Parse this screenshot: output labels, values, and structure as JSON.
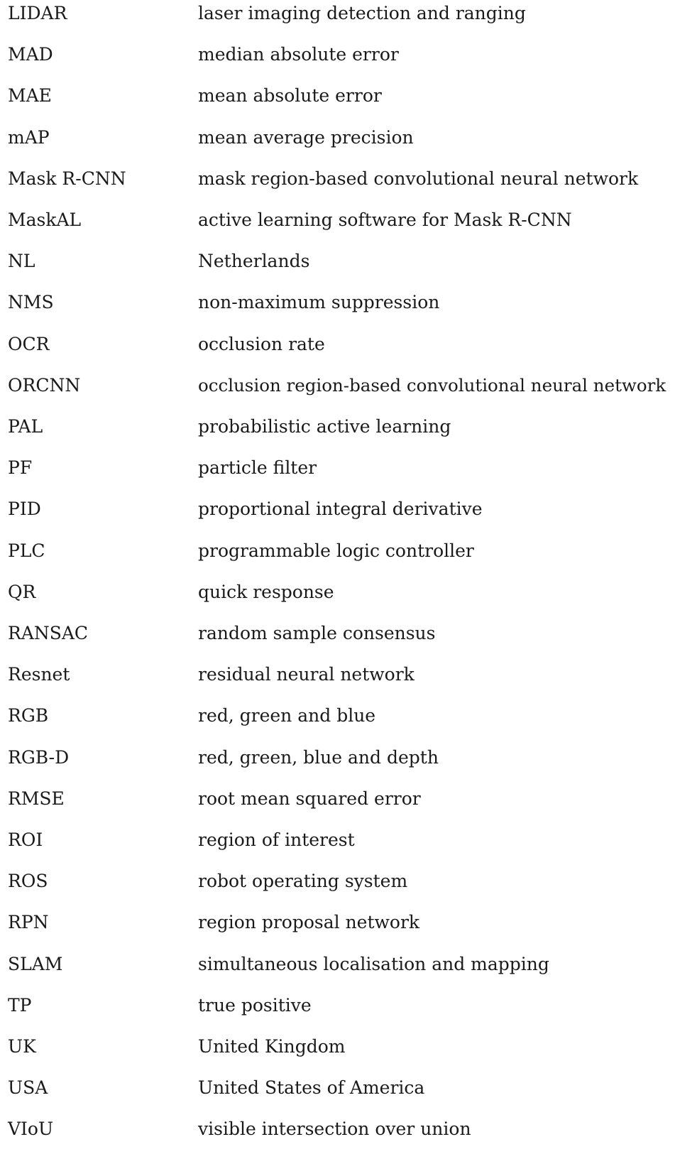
{
  "abbreviations": [
    {
      "abbr": "LIDAR",
      "definition": "laser imaging detection and ranging"
    },
    {
      "abbr": "MAD",
      "definition": "median absolute error"
    },
    {
      "abbr": "MAE",
      "definition": "mean absolute error"
    },
    {
      "abbr": "mAP",
      "definition": "mean average precision"
    },
    {
      "abbr": "Mask R-CNN",
      "definition": "mask region-based convolutional neural network"
    },
    {
      "abbr": "MaskAL",
      "definition": "active learning software for Mask R-CNN"
    },
    {
      "abbr": "NL",
      "definition": "Netherlands"
    },
    {
      "abbr": "NMS",
      "definition": "non-maximum suppression"
    },
    {
      "abbr": "OCR",
      "definition": "occlusion rate"
    },
    {
      "abbr": "ORCNN",
      "definition": "occlusion region-based convolutional neural network"
    },
    {
      "abbr": "PAL",
      "definition": "probabilistic active learning"
    },
    {
      "abbr": "PF",
      "definition": "particle filter"
    },
    {
      "abbr": "PID",
      "definition": "proportional integral derivative"
    },
    {
      "abbr": "PLC",
      "definition": "programmable logic controller"
    },
    {
      "abbr": "QR",
      "definition": "quick response"
    },
    {
      "abbr": "RANSAC",
      "definition": "random sample consensus"
    },
    {
      "abbr": "Resnet",
      "definition": "residual neural network"
    },
    {
      "abbr": "RGB",
      "definition": "red, green and blue"
    },
    {
      "abbr": "RGB-D",
      "definition": "red, green, blue and depth"
    },
    {
      "abbr": "RMSE",
      "definition": "root mean squared error"
    },
    {
      "abbr": "ROI",
      "definition": "region of interest"
    },
    {
      "abbr": "ROS",
      "definition": "robot operating system"
    },
    {
      "abbr": "RPN",
      "definition": "region proposal network"
    },
    {
      "abbr": "SLAM",
      "definition": "simultaneous localisation and mapping"
    },
    {
      "abbr": "TP",
      "definition": "true positive"
    },
    {
      "abbr": "UK",
      "definition": "United Kingdom"
    },
    {
      "abbr": "USA",
      "definition": "United States of America"
    },
    {
      "abbr": "VIoU",
      "definition": "visible intersection over union"
    }
  ]
}
